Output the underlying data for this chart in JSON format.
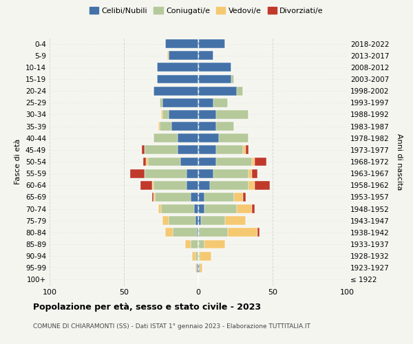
{
  "age_groups": [
    "100+",
    "95-99",
    "90-94",
    "85-89",
    "80-84",
    "75-79",
    "70-74",
    "65-69",
    "60-64",
    "55-59",
    "50-54",
    "45-49",
    "40-44",
    "35-39",
    "30-34",
    "25-29",
    "20-24",
    "15-19",
    "10-14",
    "5-9",
    "0-4"
  ],
  "birth_years": [
    "≤ 1922",
    "1923-1927",
    "1928-1932",
    "1933-1937",
    "1938-1942",
    "1943-1947",
    "1948-1952",
    "1953-1957",
    "1958-1962",
    "1963-1967",
    "1968-1972",
    "1973-1977",
    "1978-1982",
    "1983-1987",
    "1988-1992",
    "1993-1997",
    "1998-2002",
    "2003-2007",
    "2008-2012",
    "2013-2017",
    "2018-2022"
  ],
  "males": {
    "celibi": [
      0,
      1,
      0,
      0,
      1,
      2,
      3,
      5,
      8,
      8,
      12,
      14,
      14,
      18,
      20,
      24,
      30,
      28,
      28,
      20,
      22
    ],
    "coniugati": [
      0,
      0,
      2,
      5,
      16,
      18,
      22,
      24,
      22,
      28,
      22,
      22,
      16,
      8,
      4,
      2,
      0,
      0,
      0,
      0,
      0
    ],
    "vedovi": [
      0,
      1,
      2,
      4,
      5,
      4,
      2,
      1,
      1,
      0,
      1,
      0,
      0,
      1,
      1,
      0,
      0,
      0,
      0,
      1,
      0
    ],
    "divorziati": [
      0,
      0,
      0,
      0,
      0,
      0,
      0,
      1,
      8,
      10,
      2,
      2,
      0,
      0,
      0,
      0,
      0,
      0,
      0,
      0,
      0
    ]
  },
  "females": {
    "nubili": [
      0,
      1,
      0,
      0,
      0,
      2,
      4,
      4,
      8,
      10,
      12,
      12,
      14,
      12,
      12,
      10,
      26,
      22,
      22,
      10,
      18
    ],
    "coniugate": [
      0,
      0,
      1,
      4,
      20,
      16,
      22,
      20,
      26,
      24,
      24,
      18,
      20,
      12,
      22,
      10,
      4,
      2,
      0,
      0,
      0
    ],
    "vedove": [
      0,
      2,
      8,
      14,
      20,
      14,
      10,
      6,
      4,
      2,
      2,
      2,
      0,
      0,
      0,
      0,
      0,
      0,
      0,
      0,
      0
    ],
    "divorziate": [
      0,
      0,
      0,
      0,
      1,
      0,
      2,
      2,
      10,
      4,
      8,
      2,
      0,
      0,
      0,
      0,
      0,
      0,
      0,
      0,
      0
    ]
  },
  "colors": {
    "celibi_nubili": "#4472a8",
    "coniugati": "#b5c99a",
    "vedovi": "#f5c872",
    "divorziati": "#c0392b"
  },
  "xlim": 100,
  "title": "Popolazione per età, sesso e stato civile - 2023",
  "subtitle": "COMUNE DI CHIARAMONTI (SS) - Dati ISTAT 1° gennaio 2023 - Elaborazione TUTTITALIA.IT",
  "ylabel_left": "Fasce di età",
  "ylabel_right": "Anni di nascita",
  "bg_color": "#f5f5f0",
  "grid_color": "#cccccc"
}
